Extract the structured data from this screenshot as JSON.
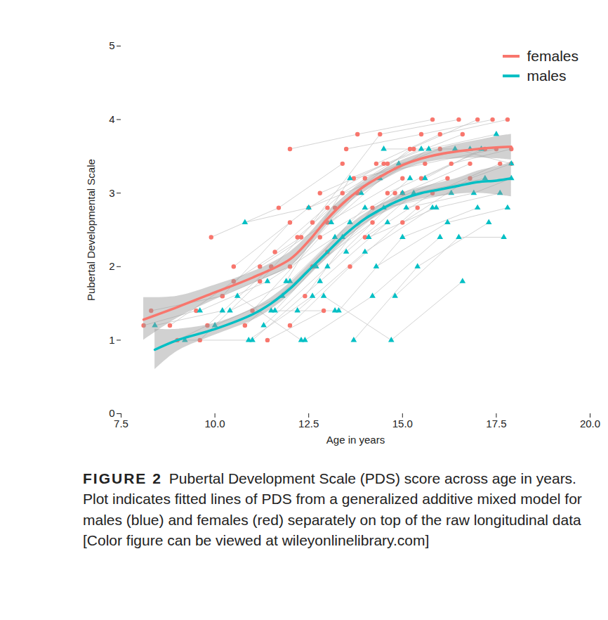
{
  "chart_data": {
    "type": "scatter",
    "xlabel": "Age in years",
    "ylabel": "Pubertal Developmental Scale",
    "caption_label": "FIGURE 2",
    "caption": "Pubertal Development Scale (PDS) score across age in years. Plot indicates fitted lines of PDS from a generalized additive mixed model for males (blue) and females (red) separately on top of the raw longitudinal data [Color figure can be viewed at wileyonlinelibrary.com]",
    "xlim": [
      7.5,
      20
    ],
    "xticks": [
      {
        "value": 7.5,
        "label": "7.5"
      },
      {
        "value": 10,
        "label": "10.0"
      },
      {
        "value": 12.5,
        "label": "12.5"
      },
      {
        "value": 15,
        "label": "15.0"
      },
      {
        "value": 17.5,
        "label": "17.5"
      },
      {
        "value": 20,
        "label": "20.0"
      }
    ],
    "ylim": [
      0,
      5
    ],
    "yticks": [
      0,
      1,
      2,
      3,
      4,
      5
    ],
    "grid": false,
    "legend": "top-right",
    "series": [
      {
        "name": "females",
        "color": "#F8766D",
        "marker": "circle",
        "x": [
          8.1,
          9,
          10,
          11,
          12,
          12.5,
          13,
          13.5,
          14,
          14.5,
          15,
          15.5,
          16,
          16.5,
          17,
          17.5,
          17.9
        ],
        "values": [
          1.28,
          1.45,
          1.65,
          1.85,
          2.1,
          2.35,
          2.65,
          2.9,
          3.1,
          3.25,
          3.38,
          3.47,
          3.53,
          3.57,
          3.6,
          3.62,
          3.63
        ],
        "ci_lower": [
          1.0,
          1.3,
          1.55,
          1.77,
          2.0,
          2.26,
          2.57,
          2.83,
          3.03,
          3.18,
          3.31,
          3.4,
          3.45,
          3.47,
          3.48,
          3.47,
          3.45
        ],
        "ci_upper": [
          1.58,
          1.6,
          1.75,
          1.93,
          2.2,
          2.44,
          2.73,
          2.97,
          3.17,
          3.32,
          3.45,
          3.54,
          3.61,
          3.67,
          3.72,
          3.77,
          3.8
        ],
        "subjects": [
          {
            "x": [
              8.1,
              9.5
            ],
            "y": [
              1.2,
              1.4
            ]
          },
          {
            "x": [
              8.3,
              10.2,
              12.0
            ],
            "y": [
              1.4,
              1.6,
              2.6
            ]
          },
          {
            "x": [
              8.8,
              10.5,
              12.3
            ],
            "y": [
              1.2,
              1.8,
              2.4
            ]
          },
          {
            "x": [
              9.0,
              9.8,
              11.5
            ],
            "y": [
              1.0,
              1.2,
              2.0
            ]
          },
          {
            "x": [
              9.6,
              11.2,
              13.0
            ],
            "y": [
              1.0,
              1.8,
              2.8
            ]
          },
          {
            "x": [
              9.9,
              11.7,
              13.4
            ],
            "y": [
              2.4,
              2.8,
              3.4
            ]
          },
          {
            "x": [
              10.2,
              12.0,
              13.8
            ],
            "y": [
              1.6,
              2.0,
              3.0
            ]
          },
          {
            "x": [
              10.5,
              12.5,
              14.5
            ],
            "y": [
              2.0,
              2.8,
              3.4
            ]
          },
          {
            "x": [
              11.0,
              12.8,
              14.8
            ],
            "y": [
              1.4,
              2.4,
              3.0
            ]
          },
          {
            "x": [
              11.2,
              13.0,
              15.0
            ],
            "y": [
              2.0,
              2.6,
              3.2
            ]
          },
          {
            "x": [
              11.6,
              13.4,
              15.3
            ],
            "y": [
              2.2,
              3.0,
              3.6
            ]
          },
          {
            "x": [
              12.0,
              13.8,
              15.8
            ],
            "y": [
              3.6,
              3.8,
              4.0
            ]
          },
          {
            "x": [
              12.2,
              14.0,
              16.0
            ],
            "y": [
              2.4,
              3.2,
              3.6
            ]
          },
          {
            "x": [
              12.4,
              14.2,
              16.2
            ],
            "y": [
              1.6,
              2.8,
              3.2
            ]
          },
          {
            "x": [
              12.6,
              14.4,
              16.5
            ],
            "y": [
              2.6,
              3.8,
              4.0
            ]
          },
          {
            "x": [
              12.8,
              14.6,
              16.6
            ],
            "y": [
              3.0,
              3.4,
              3.8
            ]
          },
          {
            "x": [
              13.0,
              15.0,
              16.8
            ],
            "y": [
              2.2,
              3.0,
              3.4
            ]
          },
          {
            "x": [
              13.2,
              15.2,
              17.0
            ],
            "y": [
              2.8,
              3.6,
              4.0
            ]
          },
          {
            "x": [
              13.5,
              15.5,
              17.4
            ],
            "y": [
              3.6,
              3.8,
              4.0
            ]
          },
          {
            "x": [
              13.7,
              15.6,
              17.5
            ],
            "y": [
              3.2,
              3.4,
              3.6
            ]
          },
          {
            "x": [
              14.0,
              15.8,
              17.6
            ],
            "y": [
              2.4,
              3.0,
              3.4
            ]
          },
          {
            "x": [
              14.3,
              16.0,
              17.8
            ],
            "y": [
              3.4,
              3.8,
              4.0
            ]
          },
          {
            "x": [
              14.6,
              16.3,
              17.9
            ],
            "y": [
              3.0,
              3.4,
              3.6
            ]
          },
          {
            "x": [
              15.0,
              16.8,
              17.9
            ],
            "y": [
              2.6,
              3.2,
              3.4
            ]
          },
          {
            "x": [
              15.5,
              17.2
            ],
            "y": [
              3.2,
              3.6
            ]
          },
          {
            "x": [
              12.0,
              13.6,
              15.4
            ],
            "y": [
              1.2,
              2.0,
              2.8
            ]
          },
          {
            "x": [
              11.4,
              12.9
            ],
            "y": [
              1.0,
              1.4
            ]
          },
          {
            "x": [
              10.8,
              12.6,
              14.2
            ],
            "y": [
              1.2,
              2.0,
              2.6
            ]
          }
        ]
      },
      {
        "name": "males",
        "color": "#00BFC4",
        "marker": "triangle",
        "x": [
          8.4,
          9,
          10,
          11,
          11.5,
          12,
          12.5,
          13,
          13.5,
          14,
          14.5,
          15,
          15.5,
          16,
          16.5,
          17,
          17.5,
          17.9
        ],
        "values": [
          0.87,
          1.0,
          1.15,
          1.35,
          1.5,
          1.7,
          1.95,
          2.2,
          2.45,
          2.65,
          2.8,
          2.92,
          3.0,
          3.05,
          3.1,
          3.15,
          3.17,
          3.2
        ],
        "ci_lower": [
          0.6,
          0.85,
          1.07,
          1.27,
          1.42,
          1.62,
          1.87,
          2.12,
          2.37,
          2.58,
          2.73,
          2.85,
          2.92,
          2.96,
          2.99,
          3.0,
          2.98,
          2.95
        ],
        "ci_upper": [
          1.15,
          1.15,
          1.23,
          1.43,
          1.58,
          1.78,
          2.03,
          2.28,
          2.53,
          2.72,
          2.87,
          3.0,
          3.08,
          3.14,
          3.21,
          3.3,
          3.36,
          3.42
        ],
        "subjects": [
          {
            "x": [
              8.4,
              10.2
            ],
            "y": [
              1.2,
              1.4
            ]
          },
          {
            "x": [
              9.2,
              10.9,
              12.6
            ],
            "y": [
              1.0,
              1.0,
              1.6
            ]
          },
          {
            "x": [
              9.6,
              11.4,
              13.2
            ],
            "y": [
              1.4,
              1.8,
              2.4
            ]
          },
          {
            "x": [
              10.0,
              11.8,
              13.6
            ],
            "y": [
              1.2,
              1.6,
              2.6
            ]
          },
          {
            "x": [
              10.4,
              12.0,
              14.0
            ],
            "y": [
              1.4,
              1.8,
              2.8
            ]
          },
          {
            "x": [
              10.8,
              12.5,
              14.4
            ],
            "y": [
              2.6,
              2.8,
              3.2
            ]
          },
          {
            "x": [
              11.0,
              12.8,
              14.6
            ],
            "y": [
              1.0,
              1.8,
              2.6
            ]
          },
          {
            "x": [
              11.3,
              13.0,
              15.0
            ],
            "y": [
              1.2,
              2.0,
              3.0
            ]
          },
          {
            "x": [
              11.6,
              13.4,
              15.2
            ],
            "y": [
              1.4,
              2.4,
              3.2
            ]
          },
          {
            "x": [
              11.9,
              13.6,
              15.5
            ],
            "y": [
              1.8,
              3.2,
              3.6
            ]
          },
          {
            "x": [
              12.2,
              14.0,
              15.8
            ],
            "y": [
              1.4,
              2.2,
              2.8
            ]
          },
          {
            "x": [
              12.4,
              14.2,
              16.0
            ],
            "y": [
              1.0,
              1.6,
              2.4
            ]
          },
          {
            "x": [
              12.7,
              14.5,
              16.3
            ],
            "y": [
              2.0,
              2.8,
              3.0
            ]
          },
          {
            "x": [
              12.9,
              14.7,
              16.6
            ],
            "y": [
              1.6,
              1.0,
              1.8
            ]
          },
          {
            "x": [
              13.1,
              14.9,
              16.8
            ],
            "y": [
              2.6,
              3.4,
              3.6
            ]
          },
          {
            "x": [
              13.3,
              15.0,
              17.0
            ],
            "y": [
              1.4,
              2.4,
              2.8
            ]
          },
          {
            "x": [
              13.5,
              15.3,
              17.2
            ],
            "y": [
              2.2,
              3.0,
              3.2
            ]
          },
          {
            "x": [
              13.7,
              15.4,
              17.3
            ],
            "y": [
              1.0,
              2.0,
              2.6
            ]
          },
          {
            "x": [
              13.9,
              15.7,
              17.5
            ],
            "y": [
              3.0,
              3.6,
              3.8
            ]
          },
          {
            "x": [
              14.1,
              15.9,
              17.6
            ],
            "y": [
              2.4,
              2.8,
              3.0
            ]
          },
          {
            "x": [
              14.3,
              16.2,
              17.8
            ],
            "y": [
              2.0,
              2.6,
              2.8
            ]
          },
          {
            "x": [
              14.5,
              16.4,
              17.9
            ],
            "y": [
              3.6,
              3.6,
              3.4
            ]
          },
          {
            "x": [
              14.8,
              16.5,
              17.7
            ],
            "y": [
              1.6,
              2.4,
              2.4
            ]
          },
          {
            "x": [
              15.1,
              16.9,
              17.9
            ],
            "y": [
              2.8,
              3.0,
              3.2
            ]
          },
          {
            "x": [
              15.6,
              17.1
            ],
            "y": [
              3.2,
              3.6
            ]
          },
          {
            "x": [
              10.6,
              12.3
            ],
            "y": [
              1.6,
              1.0
            ]
          },
          {
            "x": [
              11.5,
              13.2
            ],
            "y": [
              1.4,
              1.4
            ]
          }
        ]
      }
    ]
  }
}
